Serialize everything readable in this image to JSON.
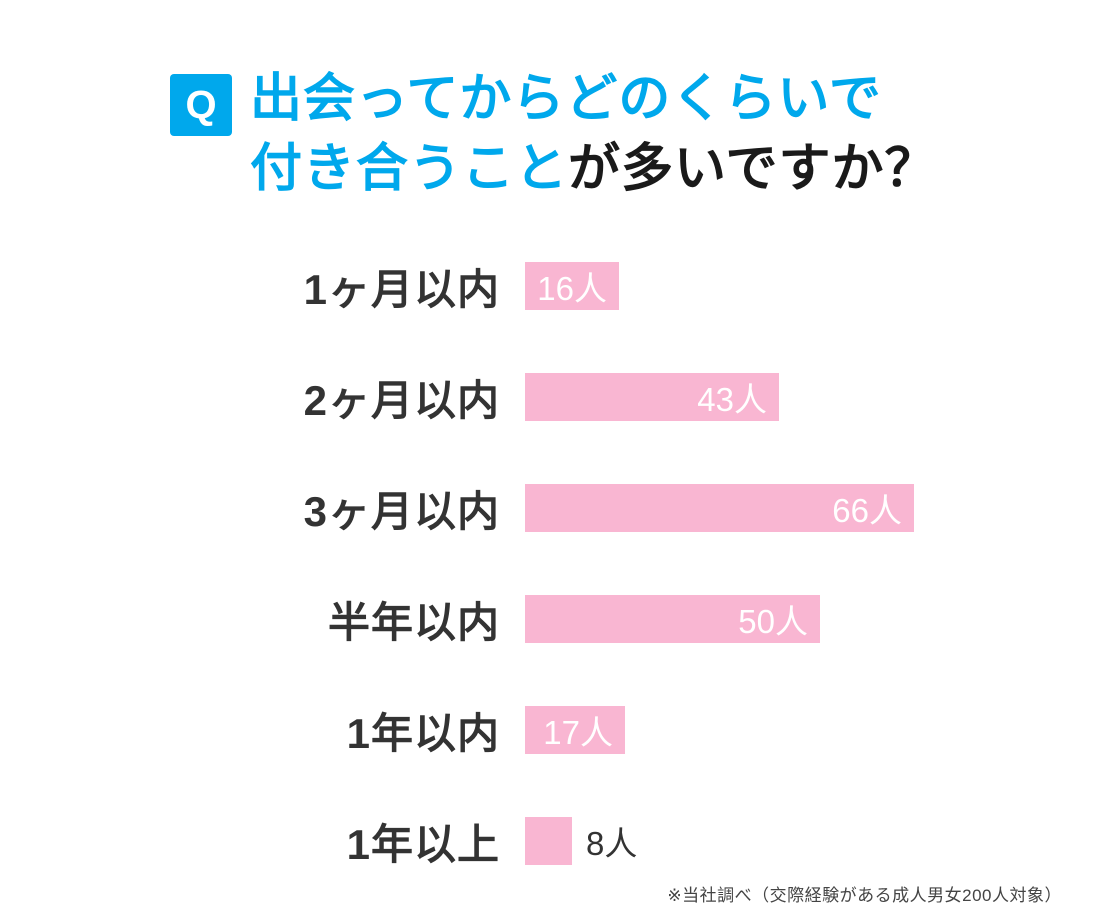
{
  "title": {
    "q_badge": "Q",
    "line1_blue": "出会ってからどのくらいで",
    "line2_blue": "付き合うこと",
    "line2_black": "が多いですか？"
  },
  "chart_data": {
    "type": "bar",
    "orientation": "horizontal",
    "title": "出会ってからどのくらいで付き合うことが多いですか？",
    "categories": [
      "1ヶ月以内",
      "2ヶ月以内",
      "3ヶ月以内",
      "半年以内",
      "1年以内",
      "1年以上"
    ],
    "values": [
      16,
      43,
      66,
      50,
      17,
      8
    ],
    "unit": "人",
    "xlim": [
      0,
      70
    ],
    "grid": false,
    "legend": "none",
    "bar_color": "#F9B6D2",
    "value_label_inside_color": "#FFFFFF",
    "value_label_outside_color": "#333333"
  },
  "footer": {
    "note": "※当社調べ（交際経験がある成人男女200人対象）"
  },
  "colors": {
    "accent_blue": "#00A8EC",
    "bar_pink": "#F9B6D2",
    "text_dark": "#333333"
  }
}
